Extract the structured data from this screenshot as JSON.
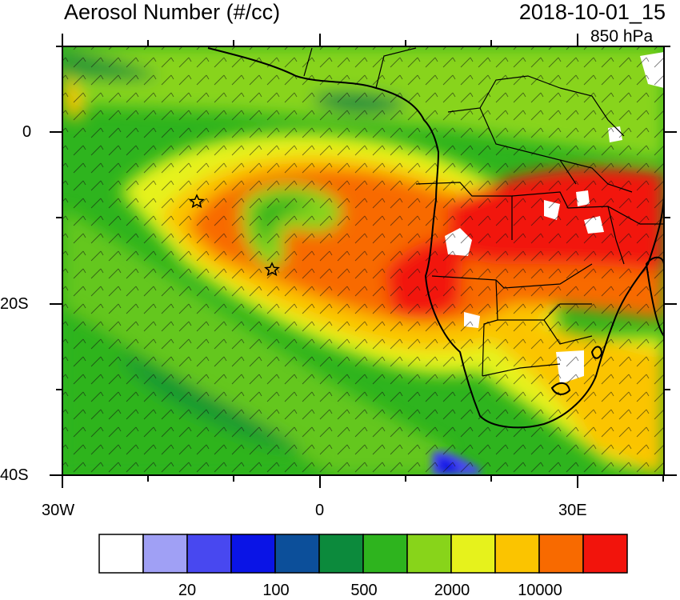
{
  "title": "Aerosol Number (#/cc)",
  "datetime": "2018-10-01_15",
  "level": "850 hPa",
  "lat_ticks": [
    "0",
    "20S",
    "40S"
  ],
  "lon_ticks": [
    "30W",
    "0",
    "30E"
  ],
  "colorbar": {
    "colors": [
      "#ffffff",
      "#a0a0f5",
      "#4848f0",
      "#0a14e6",
      "#0c4f9a",
      "#0c8a3c",
      "#2eb41e",
      "#88d41a",
      "#e6f21c",
      "#fbc400",
      "#f86a00",
      "#f2140c"
    ],
    "labels": [
      "20",
      "100",
      "500",
      "2000",
      "10000"
    ]
  },
  "map": {
    "land_outline_color": "#000000",
    "markers": "star"
  }
}
